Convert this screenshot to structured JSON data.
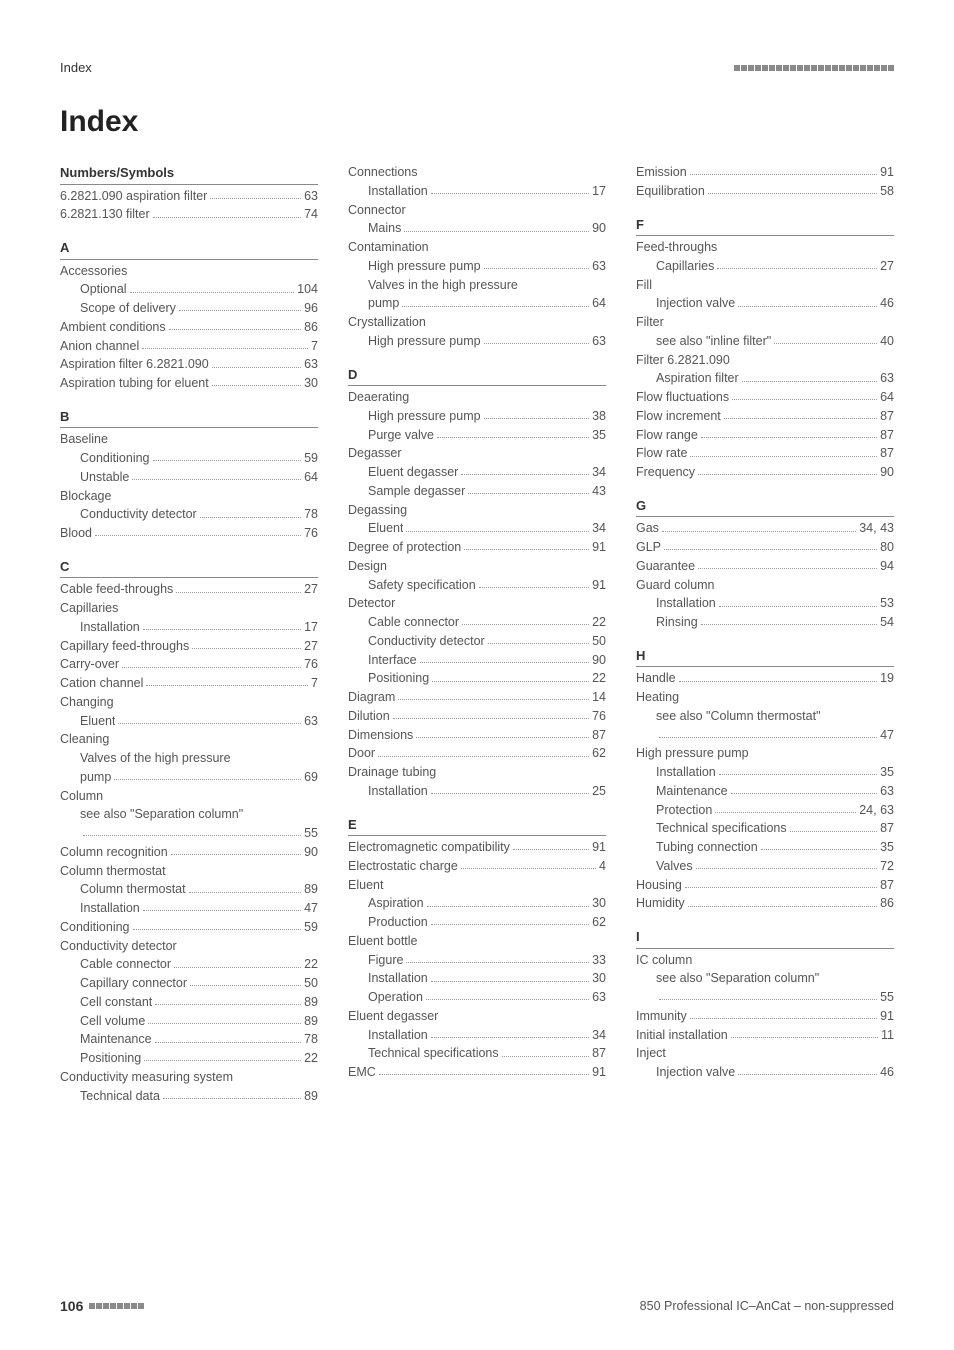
{
  "page_header": {
    "left_label": "Index",
    "square_count": 23,
    "square_color": "#8a8a8a"
  },
  "title": "Index",
  "footer": {
    "page_number": "106",
    "right_text": "850 Professional IC–AnCat – non-suppressed",
    "square_count": 8
  },
  "columns": [
    {
      "sections": [
        {
          "head": "Numbers/Symbols",
          "first": true,
          "entries": [
            {
              "level": 0,
              "label": "6.2821.090 aspiration filter",
              "page": "63"
            },
            {
              "level": 0,
              "label": "6.2821.130 filter",
              "page": "74"
            }
          ]
        },
        {
          "head": "A",
          "entries": [
            {
              "level": 0,
              "label": "Accessories",
              "page": ""
            },
            {
              "level": 1,
              "label": "Optional",
              "page": "104"
            },
            {
              "level": 1,
              "label": "Scope of delivery",
              "page": "96"
            },
            {
              "level": 0,
              "label": "Ambient conditions",
              "page": "86"
            },
            {
              "level": 0,
              "label": "Anion channel",
              "page": "7"
            },
            {
              "level": 0,
              "label": "Aspiration filter 6.2821.090",
              "page": "63"
            },
            {
              "level": 0,
              "label": "Aspiration tubing for eluent",
              "page": "30"
            }
          ]
        },
        {
          "head": "B",
          "entries": [
            {
              "level": 0,
              "label": "Baseline",
              "page": ""
            },
            {
              "level": 1,
              "label": "Conditioning",
              "page": "59"
            },
            {
              "level": 1,
              "label": "Unstable",
              "page": "64"
            },
            {
              "level": 0,
              "label": "Blockage",
              "page": ""
            },
            {
              "level": 1,
              "label": "Conductivity detector",
              "page": "78"
            },
            {
              "level": 0,
              "label": "Blood",
              "page": "76"
            }
          ]
        },
        {
          "head": "C",
          "entries": [
            {
              "level": 0,
              "label": "Cable feed-throughs",
              "page": "27"
            },
            {
              "level": 0,
              "label": "Capillaries",
              "page": ""
            },
            {
              "level": 1,
              "label": "Installation",
              "page": "17"
            },
            {
              "level": 0,
              "label": "Capillary feed-throughs",
              "page": "27"
            },
            {
              "level": 0,
              "label": "Carry-over",
              "page": "76"
            },
            {
              "level": 0,
              "label": "Cation channel",
              "page": "7"
            },
            {
              "level": 0,
              "label": "Changing",
              "page": ""
            },
            {
              "level": 1,
              "label": "Eluent",
              "page": "63"
            },
            {
              "level": 0,
              "label": "Cleaning",
              "page": ""
            },
            {
              "level": 1,
              "label": "Valves of the high pressure",
              "page": ""
            },
            {
              "level": 1,
              "label": "pump",
              "page": "69"
            },
            {
              "level": 0,
              "label": "Column",
              "page": ""
            },
            {
              "level": 1,
              "label": "see also \"Separation column\"",
              "page": ""
            },
            {
              "level": 1,
              "label": "",
              "page": "55"
            },
            {
              "level": 0,
              "label": "Column recognition",
              "page": "90"
            },
            {
              "level": 0,
              "label": "Column thermostat",
              "page": ""
            },
            {
              "level": 1,
              "label": "Column thermostat",
              "page": "89"
            },
            {
              "level": 1,
              "label": "Installation",
              "page": "47"
            },
            {
              "level": 0,
              "label": "Conditioning",
              "page": "59"
            },
            {
              "level": 0,
              "label": "Conductivity detector",
              "page": ""
            },
            {
              "level": 1,
              "label": "Cable connector",
              "page": "22"
            },
            {
              "level": 1,
              "label": "Capillary connector",
              "page": "50"
            },
            {
              "level": 1,
              "label": "Cell constant",
              "page": "89"
            },
            {
              "level": 1,
              "label": "Cell volume",
              "page": "89"
            },
            {
              "level": 1,
              "label": "Maintenance",
              "page": "78"
            },
            {
              "level": 1,
              "label": "Positioning",
              "page": "22"
            },
            {
              "level": 0,
              "label": "Conductivity measuring system",
              "page": ""
            },
            {
              "level": 1,
              "label": "Technical data",
              "page": "89"
            }
          ]
        }
      ]
    },
    {
      "sections": [
        {
          "head": "",
          "first": true,
          "entries": [
            {
              "level": 0,
              "label": "Connections",
              "page": ""
            },
            {
              "level": 1,
              "label": "Installation",
              "page": "17"
            },
            {
              "level": 0,
              "label": "Connector",
              "page": ""
            },
            {
              "level": 1,
              "label": "Mains",
              "page": "90"
            },
            {
              "level": 0,
              "label": "Contamination",
              "page": ""
            },
            {
              "level": 1,
              "label": "High pressure pump",
              "page": "63"
            },
            {
              "level": 1,
              "label": "Valves in the high pressure",
              "page": ""
            },
            {
              "level": 1,
              "label": "pump",
              "page": "64"
            },
            {
              "level": 0,
              "label": "Crystallization",
              "page": ""
            },
            {
              "level": 1,
              "label": "High pressure pump",
              "page": "63"
            }
          ]
        },
        {
          "head": "D",
          "entries": [
            {
              "level": 0,
              "label": "Deaerating",
              "page": ""
            },
            {
              "level": 1,
              "label": "High pressure pump",
              "page": "38"
            },
            {
              "level": 1,
              "label": "Purge valve",
              "page": "35"
            },
            {
              "level": 0,
              "label": "Degasser",
              "page": ""
            },
            {
              "level": 1,
              "label": "Eluent degasser",
              "page": "34"
            },
            {
              "level": 1,
              "label": "Sample degasser",
              "page": "43"
            },
            {
              "level": 0,
              "label": "Degassing",
              "page": ""
            },
            {
              "level": 1,
              "label": "Eluent",
              "page": "34"
            },
            {
              "level": 0,
              "label": "Degree of protection",
              "page": "91"
            },
            {
              "level": 0,
              "label": "Design",
              "page": ""
            },
            {
              "level": 1,
              "label": "Safety specification",
              "page": "91"
            },
            {
              "level": 0,
              "label": "Detector",
              "page": ""
            },
            {
              "level": 1,
              "label": "Cable connector",
              "page": "22"
            },
            {
              "level": 1,
              "label": "Conductivity detector",
              "page": "50"
            },
            {
              "level": 1,
              "label": "Interface",
              "page": "90"
            },
            {
              "level": 1,
              "label": "Positioning",
              "page": "22"
            },
            {
              "level": 0,
              "label": "Diagram",
              "page": "14"
            },
            {
              "level": 0,
              "label": "Dilution",
              "page": "76"
            },
            {
              "level": 0,
              "label": "Dimensions",
              "page": "87"
            },
            {
              "level": 0,
              "label": "Door",
              "page": "62"
            },
            {
              "level": 0,
              "label": "Drainage tubing",
              "page": ""
            },
            {
              "level": 1,
              "label": "Installation",
              "page": "25"
            }
          ]
        },
        {
          "head": "E",
          "entries": [
            {
              "level": 0,
              "label": "Electromagnetic compatibility",
              "page": "91"
            },
            {
              "level": 0,
              "label": "Electrostatic charge",
              "page": "4"
            },
            {
              "level": 0,
              "label": "Eluent",
              "page": ""
            },
            {
              "level": 1,
              "label": "Aspiration",
              "page": "30"
            },
            {
              "level": 1,
              "label": "Production",
              "page": "62"
            },
            {
              "level": 0,
              "label": "Eluent bottle",
              "page": ""
            },
            {
              "level": 1,
              "label": "Figure",
              "page": "33"
            },
            {
              "level": 1,
              "label": "Installation",
              "page": "30"
            },
            {
              "level": 1,
              "label": "Operation",
              "page": "63"
            },
            {
              "level": 0,
              "label": "Eluent degasser",
              "page": ""
            },
            {
              "level": 1,
              "label": "Installation",
              "page": "34"
            },
            {
              "level": 1,
              "label": "Technical specifications",
              "page": "87"
            },
            {
              "level": 0,
              "label": "EMC",
              "page": "91"
            }
          ]
        }
      ]
    },
    {
      "sections": [
        {
          "head": "",
          "first": true,
          "entries": [
            {
              "level": 0,
              "label": "Emission",
              "page": "91"
            },
            {
              "level": 0,
              "label": "Equilibration",
              "page": "58"
            }
          ]
        },
        {
          "head": "F",
          "entries": [
            {
              "level": 0,
              "label": "Feed-throughs",
              "page": ""
            },
            {
              "level": 1,
              "label": "Capillaries",
              "page": "27"
            },
            {
              "level": 0,
              "label": "Fill",
              "page": ""
            },
            {
              "level": 1,
              "label": "Injection valve",
              "page": "46"
            },
            {
              "level": 0,
              "label": "Filter",
              "page": ""
            },
            {
              "level": 1,
              "label": "see also \"inline filter\"",
              "page": "40"
            },
            {
              "level": 0,
              "label": "Filter 6.2821.090",
              "page": ""
            },
            {
              "level": 1,
              "label": "Aspiration filter",
              "page": "63"
            },
            {
              "level": 0,
              "label": "Flow fluctuations",
              "page": "64"
            },
            {
              "level": 0,
              "label": "Flow increment",
              "page": "87"
            },
            {
              "level": 0,
              "label": "Flow range",
              "page": "87"
            },
            {
              "level": 0,
              "label": "Flow rate",
              "page": "87"
            },
            {
              "level": 0,
              "label": "Frequency",
              "page": "90"
            }
          ]
        },
        {
          "head": "G",
          "entries": [
            {
              "level": 0,
              "label": "Gas",
              "page": "34, 43"
            },
            {
              "level": 0,
              "label": "GLP",
              "page": "80"
            },
            {
              "level": 0,
              "label": "Guarantee",
              "page": "94"
            },
            {
              "level": 0,
              "label": "Guard column",
              "page": ""
            },
            {
              "level": 1,
              "label": "Installation",
              "page": "53"
            },
            {
              "level": 1,
              "label": "Rinsing",
              "page": "54"
            }
          ]
        },
        {
          "head": "H",
          "entries": [
            {
              "level": 0,
              "label": "Handle",
              "page": "19"
            },
            {
              "level": 0,
              "label": "Heating",
              "page": ""
            },
            {
              "level": 1,
              "label": "see also \"Column thermostat\"",
              "page": ""
            },
            {
              "level": 1,
              "label": "",
              "page": "47"
            },
            {
              "level": 0,
              "label": "High pressure pump",
              "page": ""
            },
            {
              "level": 1,
              "label": "Installation",
              "page": "35"
            },
            {
              "level": 1,
              "label": "Maintenance",
              "page": "63"
            },
            {
              "level": 1,
              "label": "Protection",
              "page": "24, 63"
            },
            {
              "level": 1,
              "label": "Technical specifications",
              "page": "87"
            },
            {
              "level": 1,
              "label": "Tubing connection",
              "page": "35"
            },
            {
              "level": 1,
              "label": "Valves",
              "page": "72"
            },
            {
              "level": 0,
              "label": "Housing",
              "page": "87"
            },
            {
              "level": 0,
              "label": "Humidity",
              "page": "86"
            }
          ]
        },
        {
          "head": "I",
          "entries": [
            {
              "level": 0,
              "label": "IC column",
              "page": ""
            },
            {
              "level": 1,
              "label": "see also \"Separation column\"",
              "page": ""
            },
            {
              "level": 1,
              "label": "",
              "page": "55"
            },
            {
              "level": 0,
              "label": "Immunity",
              "page": "91"
            },
            {
              "level": 0,
              "label": "Initial installation",
              "page": "11"
            },
            {
              "level": 0,
              "label": "Inject",
              "page": ""
            },
            {
              "level": 1,
              "label": "Injection valve",
              "page": "46"
            }
          ]
        }
      ]
    }
  ]
}
